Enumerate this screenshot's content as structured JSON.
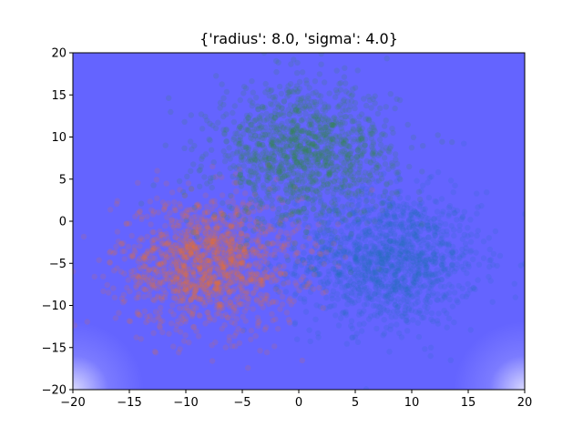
{
  "chart_data": {
    "type": "scatter",
    "title": "{'radius': 8.0, 'sigma': 4.0}",
    "xlabel": "",
    "ylabel": "",
    "xlim": [
      -20,
      20
    ],
    "ylim": [
      -20,
      20
    ],
    "xticks": [
      -20,
      -15,
      -10,
      -5,
      0,
      5,
      10,
      15,
      20
    ],
    "yticks": [
      -20,
      -15,
      -10,
      -5,
      0,
      5,
      10,
      15,
      20
    ],
    "xtick_labels": [
      "−20",
      "−15",
      "−10",
      "−5",
      "0",
      "5",
      "10",
      "15",
      "20"
    ],
    "ytick_labels": [
      "−20",
      "−15",
      "−10",
      "−5",
      "0",
      "5",
      "10",
      "15",
      "20"
    ],
    "grid": false,
    "background_color": "#6464ff",
    "series": [
      {
        "color": "#1f6fb4",
        "center": [
          8.0,
          -4.5
        ],
        "spread": 4.0
      },
      {
        "color": "#ff7010",
        "center": [
          -8.0,
          -5.0
        ],
        "spread": 4.0
      },
      {
        "color": "#2a9030",
        "center": [
          0.5,
          8.0
        ],
        "spread": 4.0
      }
    ]
  }
}
